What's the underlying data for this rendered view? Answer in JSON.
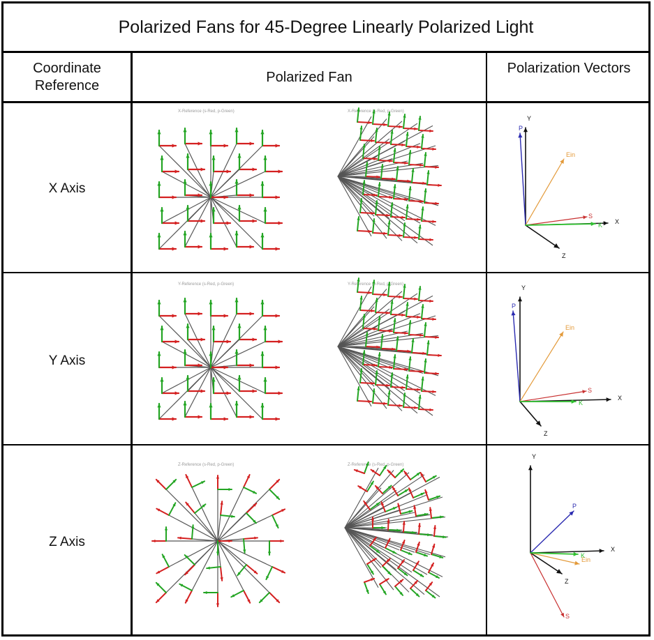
{
  "title": "Polarized Fans for 45-Degree Linearly Polarized Light",
  "headers": {
    "coord": "Coordinate Reference",
    "fan": "Polarized Fan",
    "vectors": "Polarization Vectors"
  },
  "rows": [
    {
      "label": "X Axis",
      "caption_left": "X-Reference (s-Red, p-Green)",
      "caption_right": "X-Reference (s-Red, p-Green)",
      "vector_labels": {
        "y": "Y",
        "x": "X",
        "z": "Z",
        "p": "P",
        "ein": "Ein",
        "s": "S",
        "k": "K"
      }
    },
    {
      "label": "Y Axis",
      "caption_left": "Y-Reference (s-Red, p-Green)",
      "caption_right": "Y-Reference (s-Red, p-Green)",
      "vector_labels": {
        "y": "Y",
        "x": "X",
        "z": "Z",
        "p": "P",
        "ein": "Ein",
        "s": "S",
        "k": "K"
      }
    },
    {
      "label": "Z Axis",
      "caption_left": "Z-Reference (s-Red, p-Green)",
      "caption_right": "Z-Reference (s-Red, p-Green)",
      "vector_labels": {
        "y": "Y",
        "x": "X",
        "z": "Z",
        "p": "P",
        "ein": "Ein",
        "s": "S",
        "k": "K"
      }
    }
  ],
  "colors": {
    "s_arrow": "#d42020",
    "p_arrow": "#23a523",
    "ray": "#555555",
    "p_vector": "#2a2ab0",
    "ein_vector": "#e39a3a",
    "s_vector": "#c83030",
    "k_vector": "#30c030",
    "axis": "#111111"
  }
}
